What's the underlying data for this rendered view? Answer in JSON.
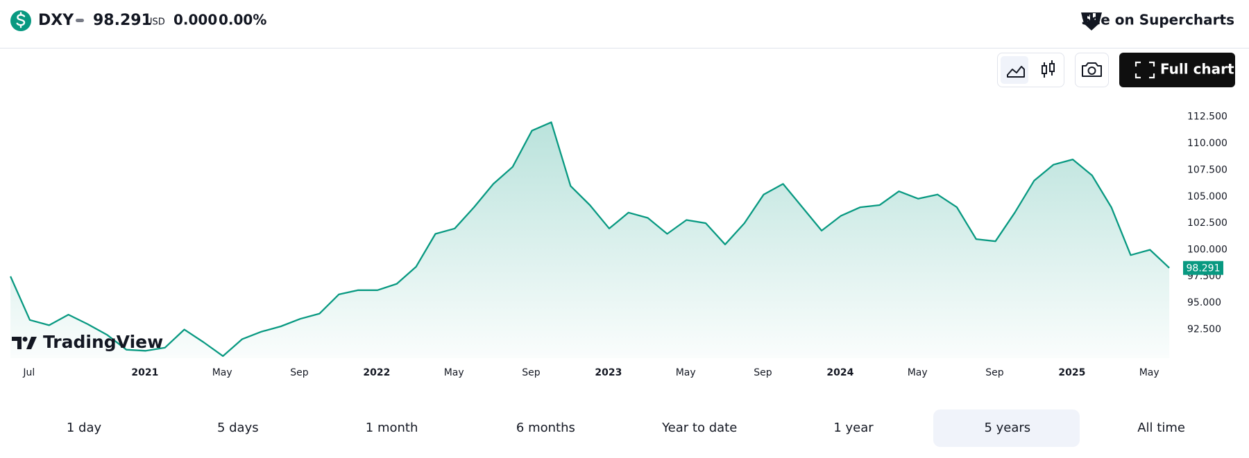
{
  "header": {
    "symbol": "DXY",
    "price": 98.291,
    "currency": "USD",
    "change": "0.000",
    "change_percent": "0.00%",
    "supercharts": "See on Supercharts"
  },
  "toolbar": {
    "full_chart": "Full chart"
  },
  "chart_data": {
    "type": "line",
    "watermark": "TradingView",
    "color": "#089981",
    "x": [
      "2020-06",
      "2020-07",
      "2020-08",
      "2020-09",
      "2020-10",
      "2020-11",
      "2020-12",
      "2021-01",
      "2021-02",
      "2021-03",
      "2021-04",
      "2021-05",
      "2021-06",
      "2021-07",
      "2021-08",
      "2021-09",
      "2021-10",
      "2021-11",
      "2021-12",
      "2022-01",
      "2022-02",
      "2022-03",
      "2022-04",
      "2022-05",
      "2022-06",
      "2022-07",
      "2022-08",
      "2022-09",
      "2022-10",
      "2022-11",
      "2022-12",
      "2023-01",
      "2023-02",
      "2023-03",
      "2023-04",
      "2023-05",
      "2023-06",
      "2023-07",
      "2023-08",
      "2023-09",
      "2023-10",
      "2023-11",
      "2023-12",
      "2024-01",
      "2024-02",
      "2024-03",
      "2024-04",
      "2024-05",
      "2024-06",
      "2024-07",
      "2024-08",
      "2024-09",
      "2024-10",
      "2024-11",
      "2024-12",
      "2025-01",
      "2025-02",
      "2025-03",
      "2025-04",
      "2025-05",
      "2025-06"
    ],
    "values": [
      97.5,
      93.4,
      92.9,
      93.9,
      93.0,
      92.0,
      90.6,
      90.5,
      90.8,
      92.5,
      91.3,
      90.0,
      91.6,
      92.3,
      92.8,
      93.5,
      94.0,
      95.8,
      96.2,
      96.2,
      96.8,
      98.4,
      101.5,
      102.0,
      104.0,
      106.2,
      107.8,
      111.2,
      112.0,
      106.0,
      104.2,
      102.0,
      103.5,
      103.0,
      101.5,
      102.8,
      102.5,
      100.5,
      102.5,
      105.2,
      106.2,
      104.0,
      101.8,
      103.2,
      104.0,
      104.2,
      105.5,
      104.8,
      105.2,
      104.0,
      101.0,
      100.8,
      103.5,
      106.5,
      108.0,
      108.5,
      107.0,
      104.0,
      99.5,
      100.0,
      98.3
    ],
    "xlim": [
      "2020-06",
      "2025-06"
    ],
    "xticks": [
      {
        "value": "2020-07",
        "label": "Jul"
      },
      {
        "value": "2021-01",
        "label": "2021"
      },
      {
        "value": "2021-05",
        "label": "May"
      },
      {
        "value": "2021-09",
        "label": "Sep"
      },
      {
        "value": "2022-01",
        "label": "2022"
      },
      {
        "value": "2022-05",
        "label": "May"
      },
      {
        "value": "2022-09",
        "label": "Sep"
      },
      {
        "value": "2023-01",
        "label": "2023"
      },
      {
        "value": "2023-05",
        "label": "May"
      },
      {
        "value": "2023-09",
        "label": "Sep"
      },
      {
        "value": "2024-01",
        "label": "2024"
      },
      {
        "value": "2024-05",
        "label": "May"
      },
      {
        "value": "2024-09",
        "label": "Sep"
      },
      {
        "value": "2025-01",
        "label": "2025"
      },
      {
        "value": "2025-05",
        "label": "May"
      }
    ],
    "ylim": [
      89.8,
      114.5
    ],
    "yticks": [
      {
        "value": 92.5,
        "label": "92.500"
      },
      {
        "value": 95,
        "label": "95.000"
      },
      {
        "value": 97.5,
        "label": "97.500"
      },
      {
        "value": 100,
        "label": "100.000"
      },
      {
        "value": 102.5,
        "label": "102.500"
      },
      {
        "value": 105,
        "label": "105.000"
      },
      {
        "value": 107.5,
        "label": "107.500"
      },
      {
        "value": 110,
        "label": "110.000"
      },
      {
        "value": 112.5,
        "label": "112.500"
      }
    ]
  },
  "ranges": [
    "1 day",
    "5 days",
    "1 month",
    "6 months",
    "Year to date",
    "1 year",
    "5 years",
    "All time"
  ]
}
